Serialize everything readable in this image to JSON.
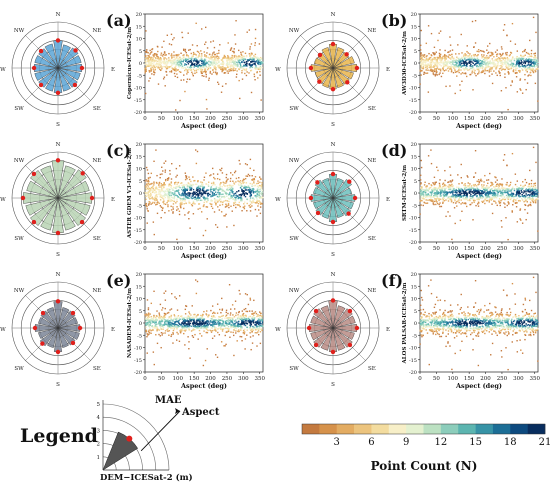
{
  "panels": [
    {
      "letter": "(a)",
      "ylabel": "Copernicus-ICESat-2/m",
      "rose_color": "#5aa5d6",
      "mae": [
        3.0,
        2.6,
        2.7,
        2.6,
        2.6,
        2.5,
        2.6,
        2.6,
        2.7,
        2.6,
        2.6,
        2.6,
        2.6,
        2.6,
        2.6,
        2.7
      ],
      "density": "two-clusters"
    },
    {
      "letter": "(b)",
      "ylabel": "AW3D30-ICESat-2/m",
      "rose_color": "#e9b54b",
      "mae": [
        2.6,
        2.3,
        2.1,
        2.4,
        2.6,
        2.3,
        2.2,
        2.2,
        2.3,
        2.2,
        2.1,
        2.0,
        2.4,
        2.1,
        2.0,
        2.3
      ],
      "density": "two-clusters"
    },
    {
      "letter": "(c)",
      "ylabel": "ASTER GDEM V3-ICESat-2/m",
      "rose_color": "#b9d3b4",
      "mae": [
        4.1,
        3.6,
        3.8,
        3.5,
        3.7,
        3.6,
        3.7,
        3.6,
        3.8,
        3.6,
        3.7,
        3.6,
        3.8,
        3.5,
        3.7,
        3.6
      ],
      "density": "broad"
    },
    {
      "letter": "(d)",
      "ylabel": "SRTM-ICESat-2/m",
      "rose_color": "#6cc0bd",
      "mae": [
        2.6,
        2.2,
        2.5,
        2.1,
        2.4,
        2.3,
        2.4,
        2.2,
        2.6,
        2.3,
        2.3,
        2.2,
        2.4,
        2.2,
        2.4,
        2.2
      ],
      "density": "band"
    },
    {
      "letter": "(e)",
      "ylabel": "NASADEM-ICESat-2/m",
      "rose_color": "#7b8596",
      "mae": [
        2.9,
        2.3,
        2.3,
        2.2,
        2.4,
        2.4,
        2.3,
        2.2,
        2.6,
        2.2,
        2.4,
        2.2,
        2.5,
        2.2,
        2.3,
        2.3
      ],
      "density": "band"
    },
    {
      "letter": "(f)",
      "ylabel": "ALOS PALSAR-ICESat-2/m",
      "rose_color": "#b88b84",
      "mae": [
        3.0,
        2.5,
        2.6,
        2.5,
        2.6,
        2.4,
        2.6,
        2.5,
        2.6,
        2.5,
        2.6,
        2.5,
        2.6,
        2.5,
        2.6,
        2.5
      ],
      "density": "band"
    }
  ],
  "rose": {
    "directions": [
      "N",
      "NE",
      "E",
      "SE",
      "S",
      "SW",
      "W",
      "NW"
    ],
    "rmax": 5
  },
  "scatter_axes": {
    "xlabel": "Aspect (deg)",
    "xticks": [
      0,
      50,
      100,
      150,
      200,
      250,
      300,
      350
    ],
    "yticks": [
      -20,
      -15,
      -10,
      -5,
      0,
      5,
      10,
      15,
      20
    ],
    "xlim": [
      0,
      360
    ],
    "ylim": [
      -20,
      20
    ]
  },
  "legend": {
    "title": "Legend",
    "mae_label": "MAE",
    "aspect_label": "Aspect",
    "axis_label": "DEM−ICESat-2 (m)",
    "ticks": [
      "1",
      "2",
      "3",
      "4",
      "5"
    ]
  },
  "colorbar": {
    "title": "Point Count (N)",
    "ticks": [
      "3",
      "6",
      "9",
      "12",
      "15",
      "18",
      "21"
    ],
    "colors": [
      "#c47a3f",
      "#d6924b",
      "#e3ac62",
      "#ecc47e",
      "#f3dc9f",
      "#f7efc8",
      "#e4f1d0",
      "#bce1c2",
      "#8ccdbb",
      "#5cb5b0",
      "#3793a6",
      "#1c6e96",
      "#0d4a7f",
      "#082d5e"
    ]
  }
}
